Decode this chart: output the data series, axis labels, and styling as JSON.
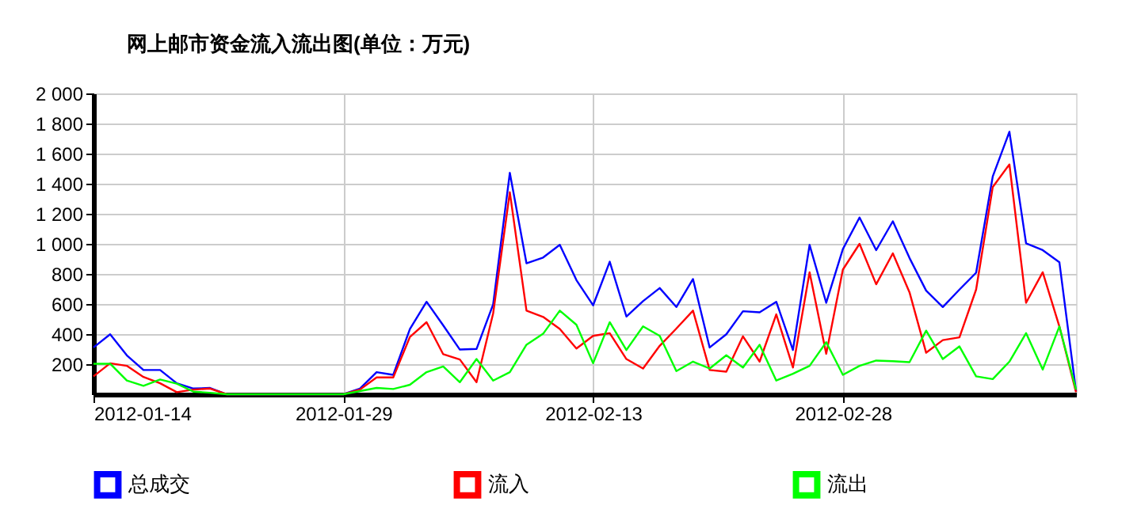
{
  "chart_data": {
    "type": "line",
    "title": "网上邮市资金流入流出图(单位：万元)",
    "x": [
      "2012-01-14",
      "2012-01-15",
      "2012-01-16",
      "2012-01-17",
      "2012-01-18",
      "2012-01-19",
      "2012-01-20",
      "2012-01-21",
      "2012-01-22",
      "2012-01-23",
      "2012-01-24",
      "2012-01-25",
      "2012-01-26",
      "2012-01-27",
      "2012-01-28",
      "2012-01-29",
      "2012-01-30",
      "2012-01-31",
      "2012-02-01",
      "2012-02-02",
      "2012-02-03",
      "2012-02-04",
      "2012-02-05",
      "2012-02-06",
      "2012-02-07",
      "2012-02-08",
      "2012-02-09",
      "2012-02-10",
      "2012-02-11",
      "2012-02-12",
      "2012-02-13",
      "2012-02-14",
      "2012-02-15",
      "2012-02-16",
      "2012-02-17",
      "2012-02-18",
      "2012-02-19",
      "2012-02-20",
      "2012-02-21",
      "2012-02-22",
      "2012-02-23",
      "2012-02-24",
      "2012-02-25",
      "2012-02-26",
      "2012-02-27",
      "2012-02-28",
      "2012-02-29",
      "2012-03-01",
      "2012-03-02",
      "2012-03-03",
      "2012-03-04",
      "2012-03-05",
      "2012-03-06",
      "2012-03-07",
      "2012-03-08",
      "2012-03-09",
      "2012-03-10",
      "2012-03-11",
      "2012-03-12",
      "2012-03-13"
    ],
    "series": [
      {
        "name": "总成交",
        "color": "#0000ff",
        "values": [
          311,
          399,
          259,
          161,
          161,
          73,
          38,
          42,
          0,
          0,
          0,
          0,
          0,
          0,
          0,
          0,
          38,
          147,
          129,
          434,
          615,
          458,
          297,
          301,
          598,
          1472,
          871,
          909,
          993,
          759,
          591,
          881,
          517,
          619,
          706,
          580,
          766,
          311,
          399,
          552,
          545,
          615,
          294,
          993,
          608,
          965,
          1175,
          958,
          1150,
          906,
          689,
          580,
          696,
          808,
          1448,
          1745,
          1003,
          958,
          878,
          20
        ]
      },
      {
        "name": "流入",
        "color": "#ff0000",
        "values": [
          119,
          206,
          189,
          115,
          73,
          14,
          31,
          38,
          0,
          0,
          0,
          0,
          0,
          0,
          0,
          0,
          31,
          112,
          112,
          381,
          479,
          266,
          231,
          80,
          538,
          1343,
          556,
          514,
          434,
          304,
          388,
          406,
          234,
          171,
          322,
          437,
          556,
          161,
          150,
          385,
          217,
          531,
          178,
          811,
          269,
          829,
          1000,
          731,
          937,
          678,
          276,
          360,
          378,
          696,
          1378,
          1528,
          608,
          811,
          451,
          14
        ]
      },
      {
        "name": "流出",
        "color": "#00ff00",
        "values": [
          203,
          203,
          91,
          56,
          98,
          70,
          17,
          10,
          0,
          0,
          0,
          0,
          0,
          0,
          0,
          0,
          21,
          42,
          35,
          63,
          147,
          185,
          80,
          234,
          91,
          147,
          329,
          402,
          556,
          462,
          206,
          479,
          294,
          451,
          388,
          154,
          217,
          171,
          259,
          178,
          329,
          91,
          136,
          189,
          346,
          129,
          189,
          224,
          220,
          213,
          423,
          234,
          318,
          119,
          101,
          217,
          406,
          164,
          451,
          31
        ]
      }
    ],
    "xlim": [
      "2012-01-14",
      "2012-03-13"
    ],
    "xticks": [
      "2012-01-14",
      "2012-01-29",
      "2012-02-13",
      "2012-02-28"
    ],
    "ylim": [
      0,
      2000
    ],
    "yticks": [
      200,
      400,
      600,
      800,
      {
        "value": 1000,
        "label": "1 000"
      },
      {
        "value": 1200,
        "label": "1 200"
      },
      {
        "value": 1400,
        "label": "1 400"
      },
      {
        "value": 1600,
        "label": "1 600"
      },
      {
        "value": 1800,
        "label": "1 800"
      },
      {
        "value": 2000,
        "label": "2 000"
      }
    ],
    "grid": true,
    "legend": "bottom",
    "marker": "none",
    "line_style": "solid"
  }
}
